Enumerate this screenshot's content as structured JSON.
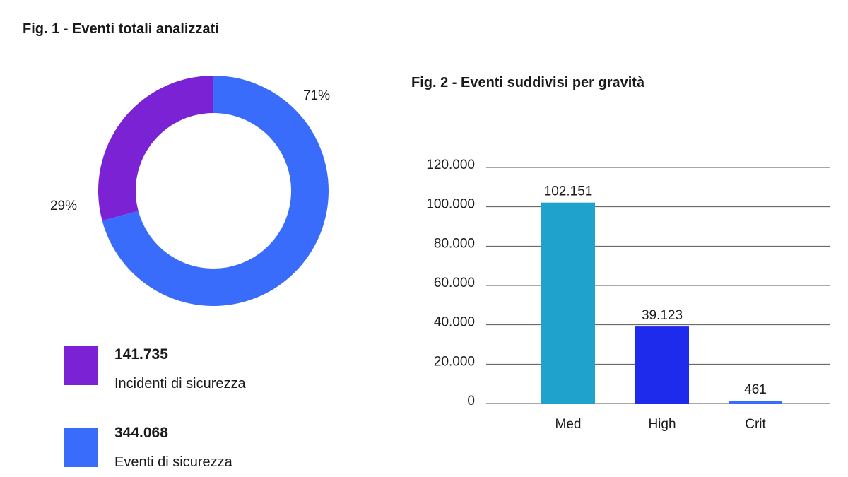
{
  "chart_data": [
    {
      "type": "pie",
      "donut": true,
      "title": "Fig. 1 - Eventi totali analizzati",
      "slices": [
        {
          "label": "Incidenti di sicurezza",
          "value": 141735,
          "value_text": "141.735",
          "percent": 29,
          "percent_text": "29%",
          "color": "#7b22d4"
        },
        {
          "label": "Eventi di sicurezza",
          "value": 344068,
          "value_text": "344.068",
          "percent": 71,
          "percent_text": "71%",
          "color": "#3a6cfb"
        }
      ],
      "legend_placement": "bottom"
    },
    {
      "type": "bar",
      "title": "Fig. 2 - Eventi suddivisi per gravità",
      "categories": [
        "Med",
        "High",
        "Crit"
      ],
      "values": [
        102151,
        39123,
        461
      ],
      "value_labels": [
        "102.151",
        "39.123",
        "461"
      ],
      "colors": [
        "#1fa3cc",
        "#1f2bec",
        "#3a6cfb"
      ],
      "ylim": [
        0,
        120000
      ],
      "yticks": [
        0,
        20000,
        40000,
        60000,
        80000,
        100000,
        120000
      ],
      "ytick_labels": [
        "0",
        "20.000",
        "40.000",
        "60.000",
        "80.000",
        "100.000",
        "120.000"
      ],
      "grid": true
    }
  ]
}
